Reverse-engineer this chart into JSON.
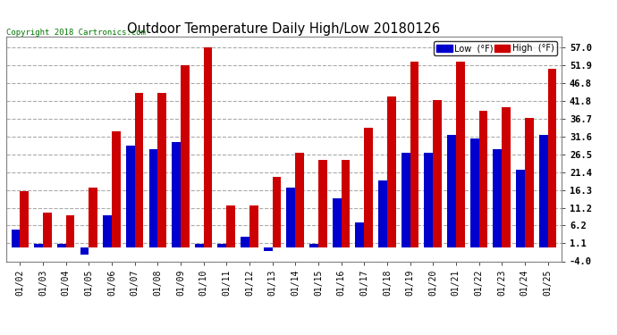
{
  "title": "Outdoor Temperature Daily High/Low 20180126",
  "copyright": "Copyright 2018 Cartronics.com",
  "categories": [
    "01/02",
    "01/03",
    "01/04",
    "01/05",
    "01/06",
    "01/07",
    "01/08",
    "01/09",
    "01/10",
    "01/11",
    "01/12",
    "01/13",
    "01/14",
    "01/15",
    "01/16",
    "01/17",
    "01/18",
    "01/19",
    "01/20",
    "01/21",
    "01/22",
    "01/23",
    "01/24",
    "01/25"
  ],
  "low_values": [
    5.0,
    1.0,
    1.0,
    -2.0,
    9.0,
    29.0,
    28.0,
    30.0,
    1.0,
    1.0,
    3.0,
    -1.0,
    17.0,
    1.0,
    14.0,
    7.0,
    19.0,
    27.0,
    27.0,
    32.0,
    31.0,
    28.0,
    22.0,
    32.0
  ],
  "high_values": [
    16.0,
    10.0,
    9.0,
    17.0,
    33.0,
    44.0,
    44.0,
    52.0,
    57.0,
    12.0,
    12.0,
    20.0,
    27.0,
    25.0,
    25.0,
    34.0,
    43.0,
    53.0,
    42.0,
    53.0,
    39.0,
    40.0,
    37.0,
    51.0
  ],
  "low_color": "#0000cc",
  "high_color": "#cc0000",
  "bg_color": "#ffffff",
  "plot_bg_color": "#ffffff",
  "grid_color": "#aaaaaa",
  "text_color": "#000000",
  "title_color": "#000000",
  "copyright_color": "#007700",
  "ylabel_right": [
    "57.0",
    "51.9",
    "46.8",
    "41.8",
    "36.7",
    "31.6",
    "26.5",
    "21.4",
    "16.3",
    "11.2",
    "6.2",
    "1.1",
    "-4.0"
  ],
  "ytick_vals": [
    57.0,
    51.9,
    46.8,
    41.8,
    36.7,
    31.6,
    26.5,
    21.4,
    16.3,
    11.2,
    6.2,
    1.1,
    -4.0
  ],
  "ymin": -4.0,
  "ymax": 60.0,
  "bar_width": 0.38,
  "legend_low_label": "Low  (°F)",
  "legend_high_label": "High  (°F)"
}
